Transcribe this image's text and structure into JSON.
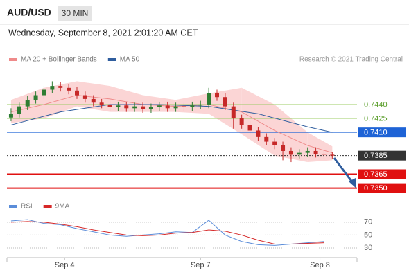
{
  "header": {
    "symbol": "AUD/USD",
    "interval": "30 MIN",
    "datetime": "Wednesday, September 8, 2021 2:01:20 AM CET"
  },
  "chart_data": [
    {
      "type": "candlestick",
      "source": "Research © 2021 Trading Central",
      "up_color": "#2e7d32",
      "down_color": "#c62828",
      "xlim": [
        -0.5,
        42
      ],
      "ylim": [
        0.734,
        0.7478
      ],
      "x": [
        0,
        1,
        2,
        3,
        4,
        5,
        6,
        7,
        8,
        9,
        10,
        11,
        12,
        13,
        14,
        15,
        16,
        17,
        18,
        19,
        20,
        21,
        22,
        23,
        24,
        25,
        26,
        27,
        28,
        29,
        30,
        31,
        32,
        33,
        34,
        35,
        36,
        37,
        38,
        39
      ],
      "open": [
        0.7426,
        0.743,
        0.7438,
        0.7445,
        0.745,
        0.7456,
        0.746,
        0.7458,
        0.7455,
        0.745,
        0.7446,
        0.7442,
        0.744,
        0.7437,
        0.7439,
        0.7436,
        0.7438,
        0.7435,
        0.7437,
        0.7439,
        0.7436,
        0.7438,
        0.7437,
        0.7439,
        0.744,
        0.7452,
        0.7448,
        0.7438,
        0.7425,
        0.7418,
        0.7412,
        0.7405,
        0.74,
        0.7396,
        0.739,
        0.7386,
        0.7388,
        0.739,
        0.7387,
        0.7386
      ],
      "high": [
        0.7436,
        0.7442,
        0.7449,
        0.7454,
        0.746,
        0.7465,
        0.7464,
        0.7462,
        0.7459,
        0.7454,
        0.745,
        0.7446,
        0.7444,
        0.7443,
        0.7443,
        0.7442,
        0.7442,
        0.7441,
        0.7443,
        0.7443,
        0.7442,
        0.7442,
        0.7443,
        0.7444,
        0.7458,
        0.7456,
        0.7452,
        0.7442,
        0.7429,
        0.7422,
        0.7416,
        0.7409,
        0.7404,
        0.74,
        0.7394,
        0.7392,
        0.7394,
        0.7394,
        0.7391,
        0.7389
      ],
      "low": [
        0.7422,
        0.7426,
        0.7434,
        0.7441,
        0.7446,
        0.7452,
        0.7454,
        0.7451,
        0.7446,
        0.7442,
        0.7438,
        0.7436,
        0.7433,
        0.7433,
        0.7432,
        0.7432,
        0.7431,
        0.7431,
        0.7433,
        0.7432,
        0.7432,
        0.7433,
        0.7433,
        0.7435,
        0.7436,
        0.7444,
        0.7434,
        0.7414,
        0.7414,
        0.7408,
        0.7401,
        0.7396,
        0.7392,
        0.738,
        0.7378,
        0.7382,
        0.7384,
        0.7383,
        0.7382,
        0.7381
      ],
      "close": [
        0.743,
        0.7438,
        0.7445,
        0.745,
        0.7456,
        0.746,
        0.7458,
        0.7455,
        0.745,
        0.7446,
        0.7442,
        0.744,
        0.7437,
        0.7439,
        0.7436,
        0.7438,
        0.7435,
        0.7437,
        0.7439,
        0.7436,
        0.7438,
        0.7437,
        0.7439,
        0.744,
        0.7452,
        0.7448,
        0.7438,
        0.7425,
        0.7418,
        0.7412,
        0.7405,
        0.74,
        0.7396,
        0.739,
        0.7386,
        0.7388,
        0.739,
        0.7387,
        0.7386,
        0.7385
      ],
      "series": [
        {
          "name": "MA 20 + Bollinger Bands",
          "color": "#ef8a8a",
          "band_color": "#fbd5d5",
          "x": [
            0,
            4,
            8,
            12,
            16,
            20,
            24,
            28,
            32,
            36,
            39
          ],
          "values": [
            0.7432,
            0.744,
            0.745,
            0.7446,
            0.744,
            0.7438,
            0.744,
            0.7432,
            0.7412,
            0.7396,
            0.7388
          ],
          "upper": [
            0.7445,
            0.7458,
            0.7465,
            0.746,
            0.745,
            0.7445,
            0.7452,
            0.7458,
            0.744,
            0.741,
            0.7395
          ],
          "lower": [
            0.742,
            0.7425,
            0.7438,
            0.7432,
            0.7432,
            0.7432,
            0.743,
            0.7408,
            0.7385,
            0.7378,
            0.738
          ]
        },
        {
          "name": "MA 50",
          "color": "#2f5d9e",
          "x": [
            0,
            6,
            12,
            18,
            24,
            30,
            36,
            39
          ],
          "values": [
            0.7418,
            0.7432,
            0.744,
            0.744,
            0.7438,
            0.743,
            0.7416,
            0.741
          ]
        }
      ],
      "levels": [
        {
          "value": 0.744,
          "label": "0.7440",
          "color": "#9ccc65",
          "box": false
        },
        {
          "value": 0.7425,
          "label": "0.7425",
          "color": "#9ccc65",
          "box": false
        },
        {
          "value": 0.741,
          "label": "0.7410",
          "color": "#1e63d6",
          "box": true
        },
        {
          "value": 0.7385,
          "label": "0.7385",
          "color": "#333333",
          "box": true
        },
        {
          "value": 0.7365,
          "label": "0.7365",
          "color": "#e01010",
          "box": true
        },
        {
          "value": 0.735,
          "label": "0.7350",
          "color": "#e01010",
          "box": true
        }
      ]
    },
    {
      "type": "line",
      "xlim": [
        -0.5,
        42
      ],
      "ylim": [
        15,
        87
      ],
      "yticks": [
        30,
        50,
        70
      ],
      "xticks": [
        {
          "value": 6.5,
          "label": "Sep 4"
        },
        {
          "value": 23,
          "label": "Sep 7"
        },
        {
          "value": 37.5,
          "label": "Sep 8"
        }
      ],
      "series": [
        {
          "name": "RSI",
          "color": "#5b8dd9",
          "x": [
            0,
            2,
            4,
            6,
            8,
            10,
            12,
            14,
            16,
            18,
            20,
            22,
            24,
            26,
            28,
            30,
            32,
            34,
            36,
            38
          ],
          "values": [
            72,
            74,
            68,
            66,
            60,
            55,
            50,
            48,
            50,
            52,
            55,
            54,
            73,
            50,
            40,
            35,
            34,
            36,
            38,
            40
          ]
        },
        {
          "name": "9MA",
          "color": "#d62828",
          "x": [
            0,
            2,
            4,
            6,
            8,
            10,
            12,
            14,
            16,
            18,
            20,
            22,
            24,
            26,
            28,
            30,
            32,
            34,
            36,
            38
          ],
          "values": [
            70,
            71,
            70,
            67,
            63,
            58,
            54,
            50,
            49,
            50,
            53,
            54,
            58,
            56,
            50,
            42,
            36,
            36,
            37,
            38
          ]
        }
      ]
    }
  ]
}
